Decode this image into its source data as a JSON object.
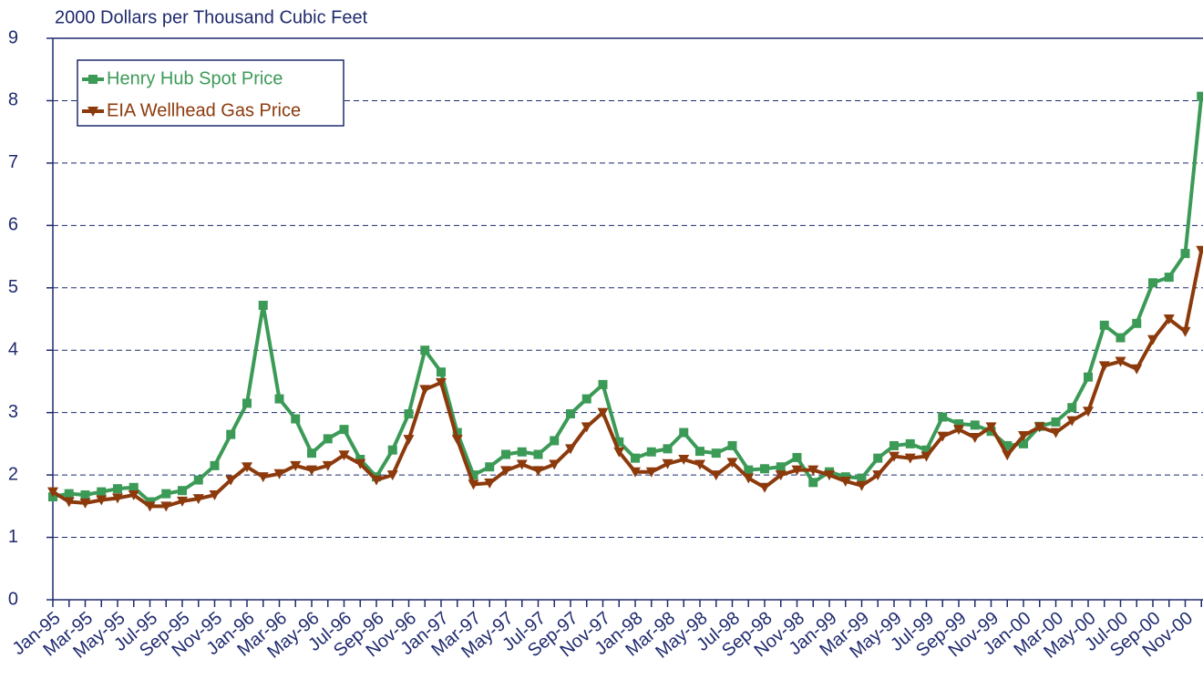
{
  "chart_data": {
    "type": "line",
    "title": "2000 Dollars per Thousand Cubic Feet",
    "categories": [
      "Jan-95",
      null,
      "Mar-95",
      null,
      "May-95",
      null,
      "Jul-95",
      null,
      "Sep-95",
      null,
      "Nov-95",
      null,
      "Jan-96",
      null,
      "Mar-96",
      null,
      "May-96",
      null,
      "Jul-96",
      null,
      "Sep-96",
      null,
      "Nov-96",
      null,
      "Jan-97",
      null,
      "Mar-97",
      null,
      "May-97",
      null,
      "Jul-97",
      null,
      "Sep-97",
      null,
      "Nov-97",
      null,
      "Jan-98",
      null,
      "Mar-98",
      null,
      "May-98",
      null,
      "Jul-98",
      null,
      "Sep-98",
      null,
      "Nov-98",
      null,
      "Jan-99",
      null,
      "Mar-99",
      null,
      "May-99",
      null,
      "Jul-99",
      null,
      "Sep-99",
      null,
      "Nov-99",
      null,
      "Jan-00",
      null,
      "Mar-00",
      null,
      "May-00",
      null,
      "Jul-00",
      null,
      "Sep-00",
      null,
      "Nov-00",
      null
    ],
    "series": [
      {
        "name": "Henry Hub Spot Price",
        "color": "#3c9a57",
        "marker": "square",
        "values": [
          1.65,
          1.7,
          1.68,
          1.73,
          1.78,
          1.8,
          1.57,
          1.7,
          1.75,
          1.92,
          2.15,
          2.65,
          3.15,
          4.72,
          3.22,
          2.9,
          2.35,
          2.58,
          2.73,
          2.25,
          1.97,
          2.4,
          2.98,
          4.0,
          3.65,
          2.68,
          2.0,
          2.13,
          2.33,
          2.37,
          2.33,
          2.55,
          2.98,
          3.22,
          3.45,
          2.53,
          2.27,
          2.37,
          2.42,
          2.68,
          2.38,
          2.35,
          2.47,
          2.08,
          2.1,
          2.13,
          2.28,
          1.88,
          2.05,
          1.97,
          1.95,
          2.27,
          2.47,
          2.5,
          2.4,
          2.93,
          2.82,
          2.8,
          2.7,
          2.47,
          2.5,
          2.78,
          2.85,
          3.08,
          3.57,
          4.4,
          4.2,
          4.43,
          5.08,
          5.17,
          5.55,
          8.07
        ]
      },
      {
        "name": "EIA Wellhead Gas Price",
        "color": "#8c3a0c",
        "marker": "triangle-down",
        "values": [
          1.73,
          1.57,
          1.55,
          1.6,
          1.63,
          1.68,
          1.5,
          1.5,
          1.58,
          1.62,
          1.68,
          1.92,
          2.13,
          1.97,
          2.02,
          2.15,
          2.08,
          2.15,
          2.32,
          2.18,
          1.92,
          2.0,
          2.57,
          3.37,
          3.48,
          2.57,
          1.85,
          1.87,
          2.07,
          2.17,
          2.07,
          2.17,
          2.42,
          2.77,
          3.0,
          2.37,
          2.05,
          2.05,
          2.18,
          2.25,
          2.17,
          2.0,
          2.2,
          1.95,
          1.8,
          2.0,
          2.08,
          2.08,
          2.0,
          1.9,
          1.83,
          2.0,
          2.3,
          2.27,
          2.3,
          2.62,
          2.73,
          2.6,
          2.77,
          2.32,
          2.63,
          2.77,
          2.68,
          2.87,
          3.02,
          3.75,
          3.82,
          3.7,
          4.17,
          4.5,
          4.3,
          5.6
        ]
      }
    ],
    "ylim": [
      0,
      9
    ],
    "yticks": [
      0,
      1,
      2,
      3,
      4,
      5,
      6,
      7,
      8,
      9
    ],
    "grid": true,
    "legend": "upper left"
  }
}
